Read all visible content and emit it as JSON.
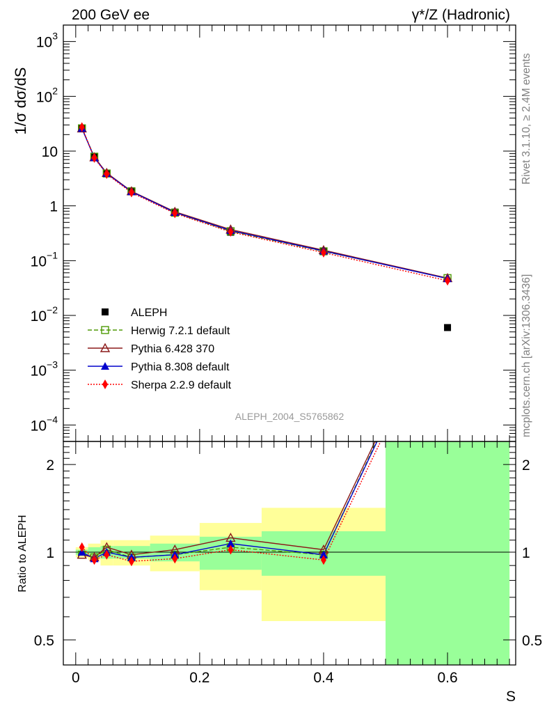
{
  "header": {
    "left_title": "200 GeV ee",
    "right_title": "γ*/Z (Hadronic)"
  },
  "side_labels": {
    "version": "Rivet 3.1.10, ≥ 2.4M events",
    "source": "mcplots.cern.ch [arXiv:1306.3436]"
  },
  "analysis_id": "ALEPH_2004_S5765862",
  "colors": {
    "data": "#000000",
    "herwig": "#4e9a06",
    "pythia6": "#8b1a1a",
    "pythia8": "#0000cc",
    "sherpa": "#ff0000",
    "band_stat": "#99ff99",
    "band_syst": "#ffff99"
  },
  "chart_data": [
    {
      "type": "line",
      "panel": "main",
      "ylabel": "1/σ  dσ/dS",
      "yscale": "log",
      "xlim": [
        -0.02,
        0.71
      ],
      "ylim": [
        5e-05,
        2000
      ],
      "yticks": [
        {
          "v": 0.0001,
          "m": "10",
          "e": "−4"
        },
        {
          "v": 0.001,
          "m": "10",
          "e": "−3"
        },
        {
          "v": 0.01,
          "m": "10",
          "e": "−2"
        },
        {
          "v": 0.1,
          "m": "10",
          "e": "−1"
        },
        {
          "v": 1,
          "m": "1",
          "e": ""
        },
        {
          "v": 10,
          "m": "10",
          "e": ""
        },
        {
          "v": 100,
          "m": "10",
          "e": "2"
        },
        {
          "v": 1000,
          "m": "10",
          "e": "3"
        }
      ],
      "data_name": "ALEPH",
      "data_points": [
        {
          "x": 0.01,
          "y": 26.5
        },
        {
          "x": 0.03,
          "y": 8.0
        },
        {
          "x": 0.05,
          "y": 3.9
        },
        {
          "x": 0.09,
          "y": 1.88
        },
        {
          "x": 0.16,
          "y": 0.77
        },
        {
          "x": 0.25,
          "y": 0.33
        },
        {
          "x": 0.4,
          "y": 0.15
        },
        {
          "x": 0.6,
          "y": 0.006
        }
      ],
      "x": [
        0.01,
        0.03,
        0.05,
        0.09,
        0.16,
        0.25,
        0.4,
        0.6
      ],
      "series": [
        {
          "name": "Herwig 7.2.1 default",
          "key": "herwig",
          "marker": "square-open",
          "dash": "6,3",
          "values": [
            26.0,
            7.9,
            3.9,
            1.84,
            0.75,
            0.345,
            0.148,
            0.048
          ]
        },
        {
          "name": "Pythia 6.428 370",
          "key": "pythia6",
          "marker": "triangle-open",
          "dash": "",
          "values": [
            26.0,
            7.7,
            4.0,
            1.85,
            0.78,
            0.37,
            0.155,
            0.048
          ]
        },
        {
          "name": "Pythia 8.308 default",
          "key": "pythia8",
          "marker": "triangle-filled",
          "dash": "",
          "values": [
            26.0,
            7.6,
            3.9,
            1.82,
            0.76,
            0.355,
            0.15,
            0.047
          ]
        },
        {
          "name": "Sherpa 2.2.9 default",
          "key": "sherpa",
          "marker": "diamond-filled",
          "dash": "2,2",
          "values": [
            27.5,
            7.5,
            3.8,
            1.75,
            0.73,
            0.335,
            0.14,
            0.043
          ]
        }
      ]
    },
    {
      "type": "line",
      "panel": "ratio",
      "ylabel": "Ratio to ALEPH",
      "xlabel": "S",
      "yscale": "log",
      "xlim": [
        -0.02,
        0.71
      ],
      "ylim": [
        0.41,
        2.4
      ],
      "yticks": [
        0.5,
        1,
        2
      ],
      "xticks": [
        0,
        0.2,
        0.4,
        0.6
      ],
      "bands": [
        {
          "x0": 0.0,
          "x1": 0.02,
          "syst": [
            0.96,
            1.04
          ],
          "stat": [
            0.98,
            1.02
          ]
        },
        {
          "x0": 0.02,
          "x1": 0.04,
          "syst": [
            0.94,
            1.07
          ],
          "stat": [
            0.97,
            1.04
          ]
        },
        {
          "x0": 0.04,
          "x1": 0.06,
          "syst": [
            0.9,
            1.1
          ],
          "stat": [
            0.95,
            1.05
          ]
        },
        {
          "x0": 0.06,
          "x1": 0.12,
          "syst": [
            0.9,
            1.1
          ],
          "stat": [
            0.95,
            1.05
          ]
        },
        {
          "x0": 0.12,
          "x1": 0.2,
          "syst": [
            0.86,
            1.14
          ],
          "stat": [
            0.93,
            1.07
          ]
        },
        {
          "x0": 0.2,
          "x1": 0.3,
          "syst": [
            0.74,
            1.26
          ],
          "stat": [
            0.87,
            1.13
          ]
        },
        {
          "x0": 0.3,
          "x1": 0.5,
          "syst": [
            0.58,
            1.42
          ],
          "stat": [
            0.83,
            1.18
          ]
        },
        {
          "x0": 0.5,
          "x1": 0.7,
          "syst": [
            0.41,
            2.4
          ],
          "stat": [
            0.41,
            2.4
          ]
        }
      ],
      "x": [
        0.01,
        0.03,
        0.05,
        0.09,
        0.16,
        0.25,
        0.4,
        0.6
      ],
      "series": [
        {
          "name": "Herwig 7.2.1 default",
          "key": "herwig",
          "marker": "square-open",
          "dash": "6,3",
          "values": [
            0.98,
            0.96,
            1.02,
            0.96,
            0.98,
            1.04,
            0.98,
            8.0
          ]
        },
        {
          "name": "Pythia 6.428 370",
          "key": "pythia6",
          "marker": "triangle-open",
          "dash": "",
          "values": [
            0.98,
            0.96,
            1.04,
            0.98,
            1.02,
            1.12,
            1.02,
            8.0
          ]
        },
        {
          "name": "Pythia 8.308 default",
          "key": "pythia8",
          "marker": "triangle-filled",
          "dash": "",
          "values": [
            1.0,
            0.95,
            1.0,
            0.96,
            0.98,
            1.07,
            0.98,
            7.8
          ]
        },
        {
          "name": "Sherpa 2.2.9 default",
          "key": "sherpa",
          "marker": "diamond-filled",
          "dash": "2,2",
          "values": [
            1.04,
            0.94,
            0.98,
            0.93,
            0.95,
            1.02,
            0.94,
            7.2
          ]
        }
      ]
    }
  ]
}
